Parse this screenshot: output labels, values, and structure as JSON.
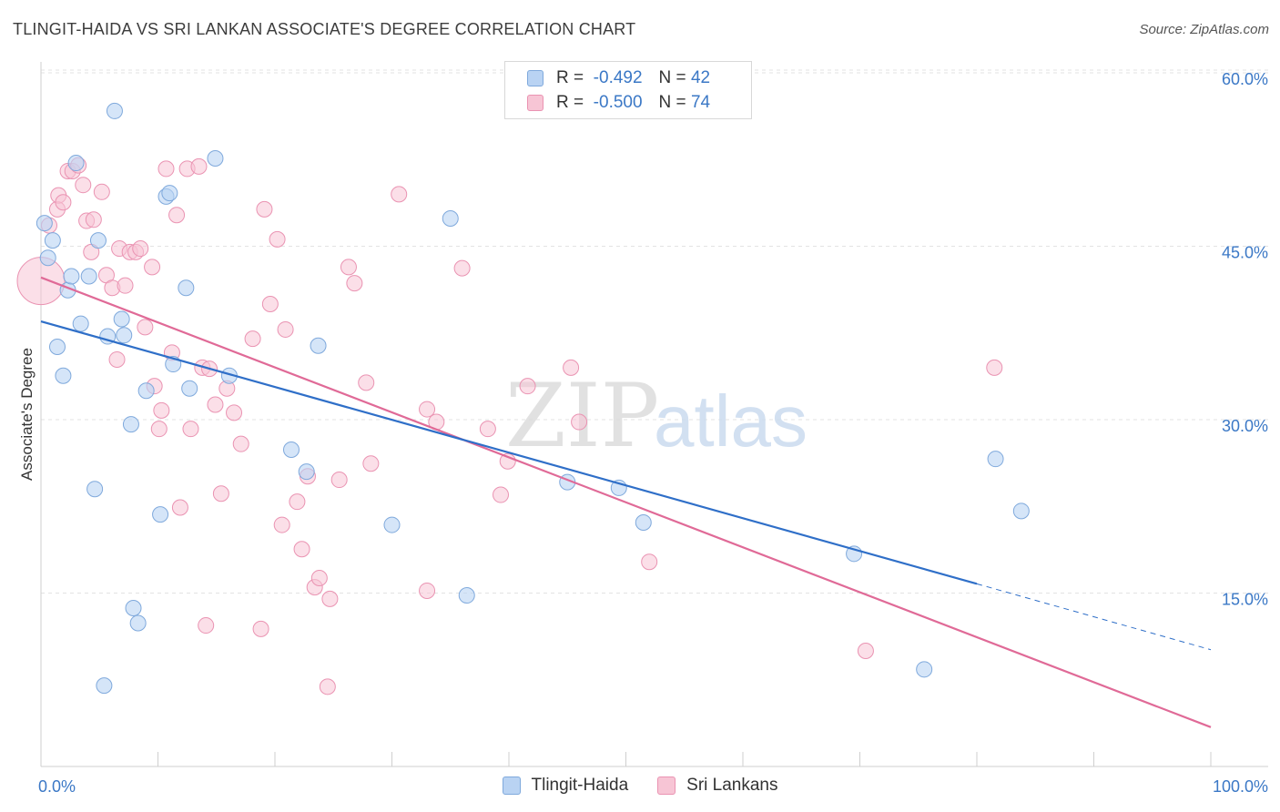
{
  "title": "TLINGIT-HAIDA VS SRI LANKAN ASSOCIATE'S DEGREE CORRELATION CHART",
  "source": "Source: ZipAtlas.com",
  "watermark": {
    "zip": "ZIP",
    "atlas": "atlas"
  },
  "legend": {
    "series1": {
      "r_label": "R =",
      "r_value": "-0.492",
      "n_label": "N =",
      "n_value": "42"
    },
    "series2": {
      "r_label": "R =",
      "r_value": "-0.500",
      "n_label": "N =",
      "n_value": "74"
    }
  },
  "colors": {
    "blue_fill": "#b9d3f3",
    "blue_stroke": "#7fa9dc",
    "blue_line": "#2f6fc8",
    "pink_fill": "#f7c5d5",
    "pink_stroke": "#ea93b2",
    "pink_line": "#e06a97",
    "tick_label": "#3b78c6",
    "grid": "#e3e3e3"
  },
  "chart_data": {
    "type": "scatter",
    "title": "TLINGIT-HAIDA VS SRI LANKAN ASSOCIATE'S DEGREE CORRELATION CHART",
    "xlabel": "",
    "ylabel": "Associate's Degree",
    "xlim": [
      0,
      100
    ],
    "ylim": [
      0,
      0.6
    ],
    "x_tick_labels": [
      "0.0%",
      "100.0%"
    ],
    "y_ticks": [
      0.15,
      0.3,
      0.45,
      0.6
    ],
    "y_tick_labels": [
      "15.0%",
      "30.0%",
      "45.0%",
      "60.0%"
    ],
    "grid": true,
    "legend_position": "top-center",
    "series": [
      {
        "name": "Tlingit-Haida",
        "r": -0.492,
        "n": 42,
        "trend": {
          "x0": 0,
          "y0": 0.385,
          "x1": 80,
          "y1": 0.158,
          "dashed_to_x": 100,
          "dashed_to_y": 0.101
        },
        "points": [
          [
            0.3,
            0.47
          ],
          [
            0.6,
            0.44
          ],
          [
            1,
            0.455
          ],
          [
            1.4,
            0.363
          ],
          [
            1.9,
            0.338
          ],
          [
            2.3,
            0.412
          ],
          [
            2.6,
            0.424
          ],
          [
            3,
            0.522
          ],
          [
            3.4,
            0.383
          ],
          [
            4.1,
            0.424
          ],
          [
            4.6,
            0.24
          ],
          [
            4.9,
            0.455
          ],
          [
            5.4,
            0.07
          ],
          [
            5.7,
            0.372
          ],
          [
            6.3,
            0.567
          ],
          [
            6.9,
            0.387
          ],
          [
            7.1,
            0.373
          ],
          [
            7.7,
            0.296
          ],
          [
            7.9,
            0.137
          ],
          [
            8.3,
            0.124
          ],
          [
            9,
            0.325
          ],
          [
            10.2,
            0.218
          ],
          [
            10.7,
            0.493
          ],
          [
            11,
            0.496
          ],
          [
            11.3,
            0.348
          ],
          [
            12.4,
            0.414
          ],
          [
            12.7,
            0.327
          ],
          [
            14.9,
            0.526
          ],
          [
            16.1,
            0.338
          ],
          [
            21.4,
            0.274
          ],
          [
            22.7,
            0.255
          ],
          [
            23.7,
            0.364
          ],
          [
            30,
            0.209
          ],
          [
            35,
            0.474
          ],
          [
            36.4,
            0.148
          ],
          [
            45,
            0.246
          ],
          [
            49.4,
            0.241
          ],
          [
            51.5,
            0.211
          ],
          [
            69.5,
            0.184
          ],
          [
            75.5,
            0.084
          ],
          [
            81.6,
            0.266
          ],
          [
            83.8,
            0.221
          ]
        ]
      },
      {
        "name": "Sri Lankans",
        "r": -0.5,
        "n": 74,
        "trend": {
          "x0": 0,
          "y0": 0.423,
          "x1": 100,
          "y1": 0.034
        },
        "points": [
          [
            0,
            0.42
          ],
          [
            0.7,
            0.468
          ],
          [
            1.4,
            0.482
          ],
          [
            1.5,
            0.494
          ],
          [
            1.9,
            0.488
          ],
          [
            2.3,
            0.515
          ],
          [
            2.7,
            0.515
          ],
          [
            3.2,
            0.52
          ],
          [
            3.6,
            0.503
          ],
          [
            3.9,
            0.472
          ],
          [
            4.3,
            0.445
          ],
          [
            4.5,
            0.473
          ],
          [
            5.2,
            0.497
          ],
          [
            5.6,
            0.425
          ],
          [
            6.1,
            0.414
          ],
          [
            6.5,
            0.352
          ],
          [
            6.7,
            0.448
          ],
          [
            7.2,
            0.416
          ],
          [
            7.6,
            0.445
          ],
          [
            8.1,
            0.445
          ],
          [
            8.5,
            0.448
          ],
          [
            8.9,
            0.38
          ],
          [
            9.5,
            0.432
          ],
          [
            9.7,
            0.329
          ],
          [
            10.1,
            0.292
          ],
          [
            10.3,
            0.308
          ],
          [
            10.7,
            0.517
          ],
          [
            11.2,
            0.358
          ],
          [
            11.6,
            0.477
          ],
          [
            11.9,
            0.224
          ],
          [
            12.5,
            0.517
          ],
          [
            12.8,
            0.292
          ],
          [
            13.5,
            0.519
          ],
          [
            13.8,
            0.345
          ],
          [
            14.1,
            0.122
          ],
          [
            14.4,
            0.344
          ],
          [
            14.9,
            0.313
          ],
          [
            15.4,
            0.236
          ],
          [
            15.9,
            0.327
          ],
          [
            16.5,
            0.306
          ],
          [
            17.1,
            0.279
          ],
          [
            18.1,
            0.37
          ],
          [
            18.8,
            0.119
          ],
          [
            19.1,
            0.482
          ],
          [
            19.6,
            0.4
          ],
          [
            20.2,
            0.456
          ],
          [
            20.6,
            0.209
          ],
          [
            20.9,
            0.378
          ],
          [
            21.9,
            0.229
          ],
          [
            22.3,
            0.188
          ],
          [
            22.8,
            0.251
          ],
          [
            23.4,
            0.155
          ],
          [
            23.8,
            0.163
          ],
          [
            24.5,
            0.069
          ],
          [
            24.7,
            0.145
          ],
          [
            25.5,
            0.248
          ],
          [
            26.3,
            0.432
          ],
          [
            26.8,
            0.418
          ],
          [
            27.8,
            0.332
          ],
          [
            28.2,
            0.262
          ],
          [
            30.6,
            0.495
          ],
          [
            33,
            0.152
          ],
          [
            33,
            0.309
          ],
          [
            33.8,
            0.298
          ],
          [
            36,
            0.431
          ],
          [
            38.2,
            0.292
          ],
          [
            39.3,
            0.235
          ],
          [
            39.9,
            0.264
          ],
          [
            41.6,
            0.329
          ],
          [
            45.3,
            0.345
          ],
          [
            46,
            0.298
          ],
          [
            52,
            0.177
          ],
          [
            70.5,
            0.1
          ],
          [
            81.5,
            0.345
          ]
        ]
      }
    ]
  }
}
